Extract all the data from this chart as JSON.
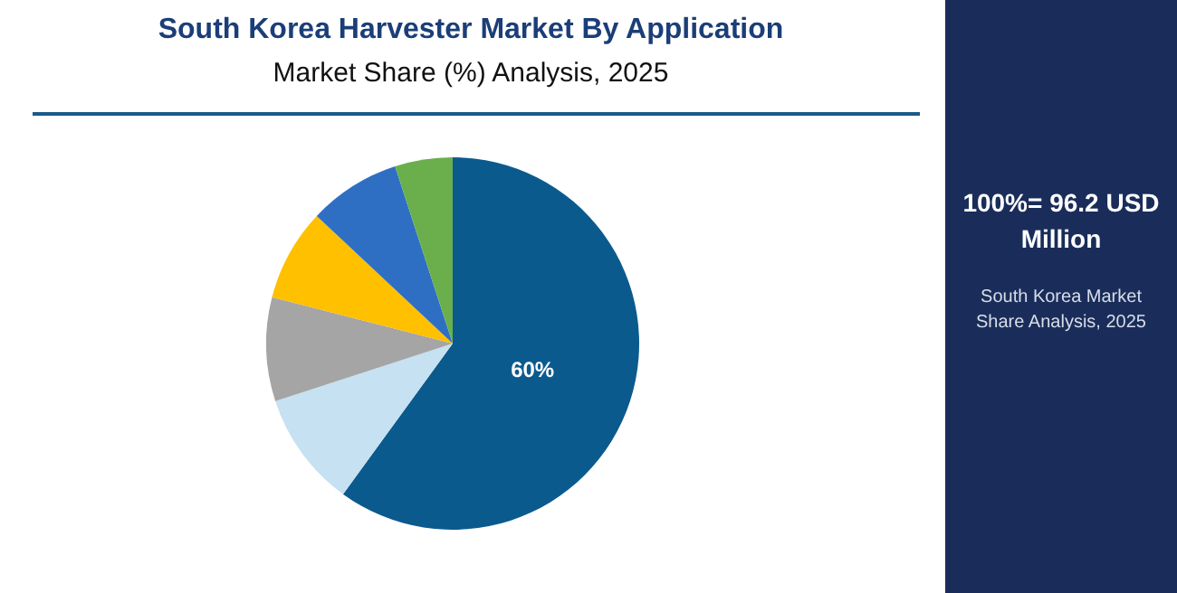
{
  "chart_data": {
    "type": "pie",
    "title": "South Korea Harvester Market By Application",
    "subtitle": "Market Share (%) Analysis, 2025",
    "categories": [
      null,
      null,
      null,
      null,
      null,
      null
    ],
    "values": [
      60,
      10,
      9,
      8,
      8,
      5
    ],
    "colors": [
      "#0b5a8e",
      "#c5e1f2",
      "#a5a5a5",
      "#ffc000",
      "#2f6fc3",
      "#6aaf4c"
    ],
    "value_labels": [
      "60%",
      null,
      null,
      null,
      null,
      null
    ],
    "annotations": [
      "100%= 96.2 USD Million",
      "South Korea Market Share Analysis, 2025"
    ]
  }
}
